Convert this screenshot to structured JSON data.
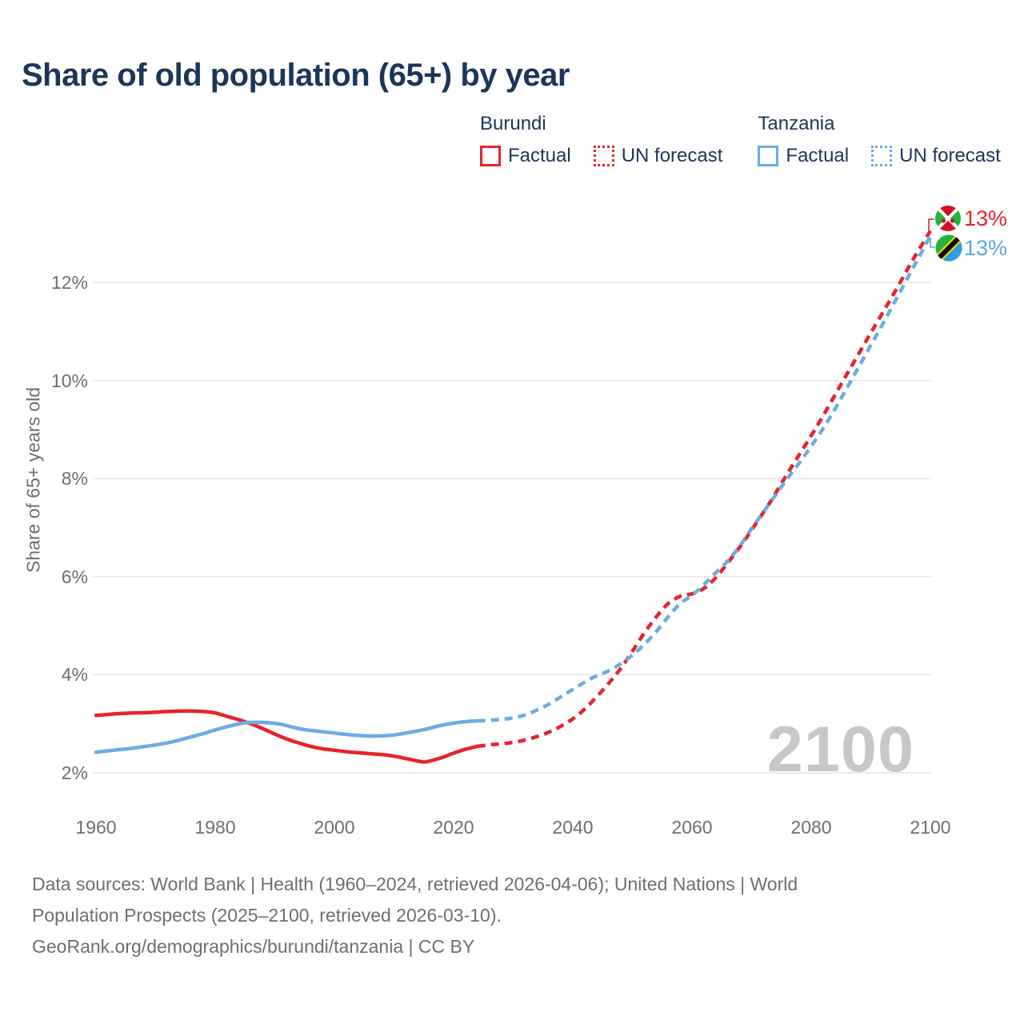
{
  "title": "Share of old population (65+) by year",
  "legend": {
    "burundi": {
      "title": "Burundi",
      "factual": "Factual",
      "forecast": "UN forecast"
    },
    "tanzania": {
      "title": "Tanzania",
      "factual": "Factual",
      "forecast": "UN forecast"
    }
  },
  "axes": {
    "y_title": "Share of 65+ years old",
    "y_ticks": [
      "12%",
      "10%",
      "8%",
      "6%",
      "4%",
      "2%"
    ],
    "x_ticks": [
      "1960",
      "1980",
      "2000",
      "2020",
      "2040",
      "2060",
      "2080",
      "2100"
    ]
  },
  "end_labels": {
    "burundi": "13%",
    "tanzania": "13%"
  },
  "watermark": "2100",
  "footer": {
    "line1": "Data sources: World Bank | Health (1960–2024, retrieved 2026-04-06); United Nations | World",
    "line2": "Population Prospects (2025–2100, retrieved 2026-03-10).",
    "line3": "GeoRank.org/demographics/burundi/tanzania | CC BY"
  },
  "colors": {
    "burundi_red": "#e8232b",
    "tanzania_blue": "#6cace4",
    "title_navy": "#1d3557",
    "tick_gray": "#6e6e6e",
    "gridline": "#ebebeb",
    "watermark_gray": "#c7c7c7"
  },
  "chart_data": {
    "type": "line",
    "title": "Share of old population (65+) by year",
    "xlabel": "",
    "ylabel": "Share of 65+ years old",
    "x_range": [
      1960,
      2100
    ],
    "y_tick_values_pct": [
      2,
      4,
      6,
      8,
      10,
      12
    ],
    "grid": "horizontal-only",
    "legend_position": "top-right",
    "series": [
      {
        "name": "Burundi Factual",
        "color": "#e8232b",
        "line_style": "solid",
        "points": [
          [
            1960,
            3.17
          ],
          [
            1963,
            3.2
          ],
          [
            1966,
            3.22
          ],
          [
            1969,
            3.23
          ],
          [
            1972,
            3.25
          ],
          [
            1975,
            3.26
          ],
          [
            1978,
            3.25
          ],
          [
            1980,
            3.22
          ],
          [
            1982,
            3.15
          ],
          [
            1984,
            3.08
          ],
          [
            1986,
            3.0
          ],
          [
            1988,
            2.9
          ],
          [
            1990,
            2.79
          ],
          [
            1992,
            2.69
          ],
          [
            1994,
            2.61
          ],
          [
            1996,
            2.54
          ],
          [
            1998,
            2.49
          ],
          [
            2000,
            2.46
          ],
          [
            2002,
            2.43
          ],
          [
            2004,
            2.41
          ],
          [
            2006,
            2.39
          ],
          [
            2008,
            2.37
          ],
          [
            2010,
            2.34
          ],
          [
            2012,
            2.29
          ],
          [
            2014,
            2.24
          ],
          [
            2015,
            2.22
          ],
          [
            2016,
            2.24
          ],
          [
            2018,
            2.31
          ],
          [
            2020,
            2.4
          ],
          [
            2022,
            2.48
          ],
          [
            2024,
            2.54
          ]
        ]
      },
      {
        "name": "Burundi UN forecast",
        "color": "#e8232b",
        "line_style": "dashed",
        "points": [
          [
            2024,
            2.54
          ],
          [
            2026,
            2.57
          ],
          [
            2028,
            2.59
          ],
          [
            2030,
            2.62
          ],
          [
            2032,
            2.67
          ],
          [
            2034,
            2.74
          ],
          [
            2036,
            2.83
          ],
          [
            2038,
            2.95
          ],
          [
            2040,
            3.1
          ],
          [
            2042,
            3.3
          ],
          [
            2044,
            3.55
          ],
          [
            2046,
            3.82
          ],
          [
            2048,
            4.12
          ],
          [
            2050,
            4.48
          ],
          [
            2052,
            4.85
          ],
          [
            2054,
            5.18
          ],
          [
            2056,
            5.45
          ],
          [
            2058,
            5.6
          ],
          [
            2060,
            5.65
          ],
          [
            2062,
            5.76
          ],
          [
            2064,
            5.98
          ],
          [
            2066,
            6.28
          ],
          [
            2068,
            6.6
          ],
          [
            2070,
            6.95
          ],
          [
            2073,
            7.5
          ],
          [
            2076,
            8.1
          ],
          [
            2079,
            8.68
          ],
          [
            2082,
            9.28
          ],
          [
            2085,
            9.92
          ],
          [
            2088,
            10.55
          ],
          [
            2091,
            11.18
          ],
          [
            2094,
            11.8
          ],
          [
            2097,
            12.45
          ],
          [
            2100,
            13.05
          ]
        ]
      },
      {
        "name": "Tanzania Factual",
        "color": "#6cace4",
        "line_style": "solid",
        "points": [
          [
            1960,
            2.42
          ],
          [
            1963,
            2.46
          ],
          [
            1966,
            2.5
          ],
          [
            1969,
            2.55
          ],
          [
            1972,
            2.61
          ],
          [
            1975,
            2.7
          ],
          [
            1978,
            2.8
          ],
          [
            1981,
            2.91
          ],
          [
            1983,
            2.97
          ],
          [
            1985,
            3.02
          ],
          [
            1987,
            3.03
          ],
          [
            1989,
            3.02
          ],
          [
            1991,
            2.99
          ],
          [
            1993,
            2.93
          ],
          [
            1995,
            2.88
          ],
          [
            1997,
            2.85
          ],
          [
            2000,
            2.81
          ],
          [
            2003,
            2.77
          ],
          [
            2006,
            2.75
          ],
          [
            2009,
            2.76
          ],
          [
            2012,
            2.81
          ],
          [
            2015,
            2.88
          ],
          [
            2018,
            2.97
          ],
          [
            2021,
            3.03
          ],
          [
            2024,
            3.06
          ]
        ]
      },
      {
        "name": "Tanzania UN forecast",
        "color": "#6cace4",
        "line_style": "dashed",
        "points": [
          [
            2024,
            3.06
          ],
          [
            2026,
            3.07
          ],
          [
            2028,
            3.09
          ],
          [
            2030,
            3.12
          ],
          [
            2032,
            3.18
          ],
          [
            2034,
            3.28
          ],
          [
            2036,
            3.4
          ],
          [
            2038,
            3.55
          ],
          [
            2040,
            3.7
          ],
          [
            2043,
            3.92
          ],
          [
            2046,
            4.08
          ],
          [
            2048,
            4.22
          ],
          [
            2050,
            4.4
          ],
          [
            2052,
            4.62
          ],
          [
            2054,
            4.88
          ],
          [
            2056,
            5.18
          ],
          [
            2058,
            5.45
          ],
          [
            2060,
            5.62
          ],
          [
            2062,
            5.84
          ],
          [
            2064,
            6.08
          ],
          [
            2066,
            6.32
          ],
          [
            2068,
            6.62
          ],
          [
            2070,
            6.98
          ],
          [
            2072,
            7.32
          ],
          [
            2074,
            7.66
          ],
          [
            2076,
            8.0
          ],
          [
            2078,
            8.32
          ],
          [
            2080,
            8.66
          ],
          [
            2082,
            9.02
          ],
          [
            2084,
            9.42
          ],
          [
            2086,
            9.85
          ],
          [
            2088,
            10.28
          ],
          [
            2090,
            10.72
          ],
          [
            2092,
            11.15
          ],
          [
            2094,
            11.6
          ],
          [
            2096,
            12.05
          ],
          [
            2098,
            12.5
          ],
          [
            2100,
            12.95
          ]
        ]
      }
    ],
    "end_labels": [
      {
        "series": "Burundi",
        "year": 2100,
        "value": "13%"
      },
      {
        "series": "Tanzania",
        "year": 2100,
        "value": "13%"
      }
    ]
  }
}
